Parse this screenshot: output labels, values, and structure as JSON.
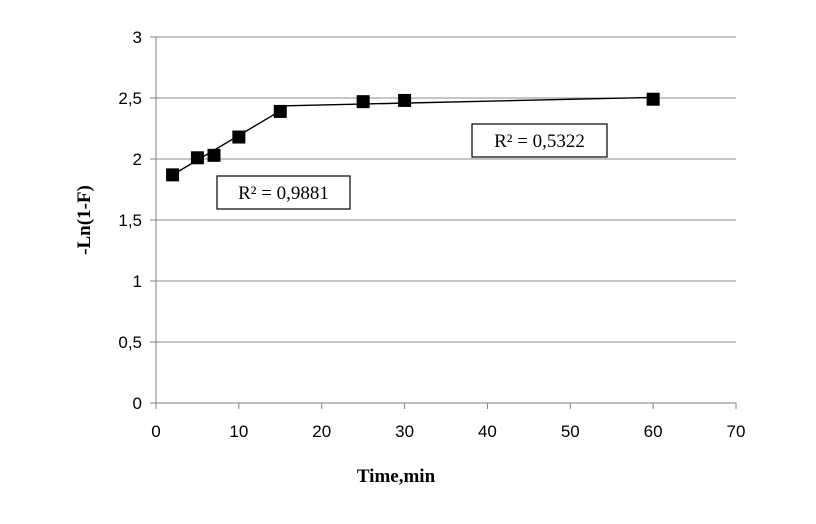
{
  "chart_data": {
    "type": "scatter",
    "title": "",
    "xlabel": "Time,min",
    "ylabel": "-Ln(1-F)",
    "xlim": [
      0,
      70
    ],
    "ylim": [
      0,
      3
    ],
    "x_ticks": [
      0,
      10,
      20,
      30,
      40,
      50,
      60,
      70
    ],
    "y_ticks": [
      0,
      0.5,
      1,
      1.5,
      2,
      2.5,
      3
    ],
    "x_tick_labels": [
      "0",
      "10",
      "20",
      "30",
      "40",
      "50",
      "60",
      "70"
    ],
    "y_tick_labels": [
      "0",
      "0,5",
      "1",
      "1,5",
      "2",
      "2,5",
      "3"
    ],
    "grid": "horizontal",
    "legend": "none",
    "series": [
      {
        "x": [
          2,
          5,
          7,
          10,
          15,
          25,
          30,
          60
        ],
        "y": [
          1.87,
          2.01,
          2.03,
          2.18,
          2.39,
          2.47,
          2.48,
          2.49
        ]
      }
    ],
    "trendlines": [
      {
        "label": "R² = 0,9881",
        "x": [
          2,
          15
        ],
        "y": [
          1.87,
          2.395
        ]
      },
      {
        "label": "R² = 0,5322",
        "x": [
          15,
          60
        ],
        "y": [
          2.435,
          2.505
        ]
      }
    ],
    "marker": "square",
    "marker_color": "#000000",
    "line_color": "#000000",
    "grid_color": "#8c8c8c"
  }
}
